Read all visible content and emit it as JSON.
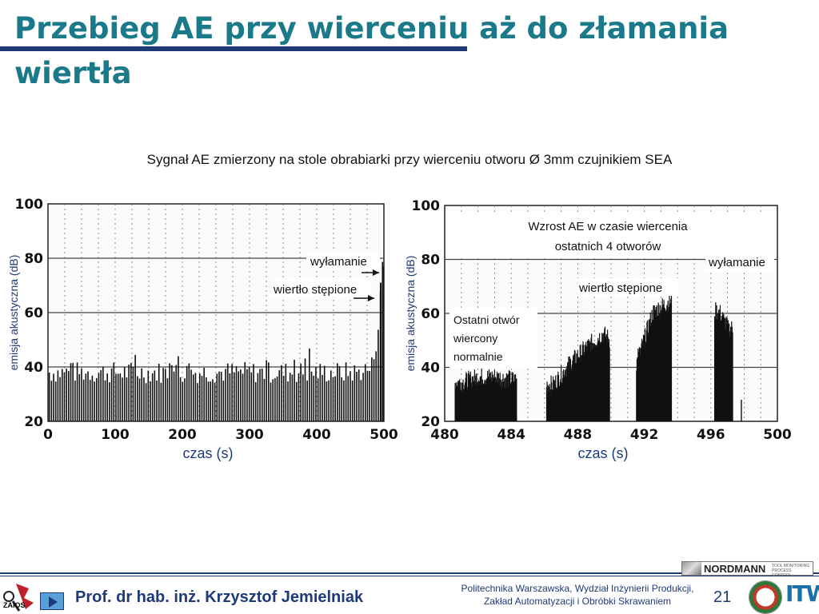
{
  "slide": {
    "title": "Przebieg AE przy wierceniu aż do złamania wiertła",
    "subtitle": "Sygnał AE zmierzony na stole obrabiarki przy wierceniu otworu Ø 3mm czujnikiem SEA",
    "page_number": "21",
    "author": "Prof. dr hab. inż. Krzysztof Jemielniak",
    "institution_line1": "Politechnika Warszawska, Wydział Inżynierii Produkcji,",
    "institution_line2": "Zakład Automatyzacji i Obróbki Skrawaniem",
    "logo_left_text": "ZAiOS",
    "logo_sponsor_text": "NORDMANN",
    "logo_sponsor_small": "TOOL MONITORING PROCESS CONTROL",
    "logo_right_text": "ITW"
  },
  "chart_data": [
    {
      "type": "bar",
      "xlabel": "czas (s)",
      "ylabel": "emisja akustyczna (dB)",
      "xlim": [
        0,
        500
      ],
      "ylim": [
        20,
        100
      ],
      "xticks": [
        "0",
        "100",
        "200",
        "300",
        "400",
        "500"
      ],
      "yticks": [
        "20",
        "40",
        "60",
        "80",
        "100"
      ],
      "grid": true,
      "series": [
        {
          "values_description_free": true,
          "x": [
            0,
            100,
            200,
            300,
            400,
            460,
            470,
            480,
            490,
            495,
            498
          ],
          "values": [
            40,
            40,
            40,
            40,
            40,
            40,
            41,
            41,
            55,
            71,
            76
          ]
        }
      ],
      "annotations": [
        {
          "text": "wyłamanie",
          "x": 498,
          "y": 76
        },
        {
          "text": "wiertło stępione",
          "x": 490,
          "y": 70
        }
      ]
    },
    {
      "type": "bar",
      "xlabel": "czas (s)",
      "ylabel": "emisja akustyczna (dB)",
      "xlim": [
        480,
        500
      ],
      "ylim": [
        20,
        100
      ],
      "xticks": [
        "480",
        "484",
        "488",
        "492",
        "496",
        "500"
      ],
      "yticks": [
        "20",
        "40",
        "60",
        "80",
        "100"
      ],
      "grid": true,
      "series": [
        {
          "x": [
            481.0,
            482.0,
            483.0,
            484.0,
            486.5,
            487.5,
            488.5,
            489.5,
            491.5,
            492.5,
            493.5,
            496.5,
            497.0
          ],
          "values": [
            36,
            38,
            38,
            37,
            35,
            43,
            49,
            54,
            43,
            62,
            66,
            62,
            56
          ]
        }
      ],
      "annotations": [
        {
          "text": "Wzrost AE w czasie wiercenia ostatnich 4 otworów",
          "x": 491,
          "y": 83
        },
        {
          "text": "wyłamanie",
          "x": 497,
          "y": 80
        },
        {
          "text": "wiertło stępione",
          "x": 491,
          "y": 71
        },
        {
          "text": "Ostatni otwór wiercony normalnie",
          "x": 481,
          "y": 48
        }
      ]
    }
  ]
}
